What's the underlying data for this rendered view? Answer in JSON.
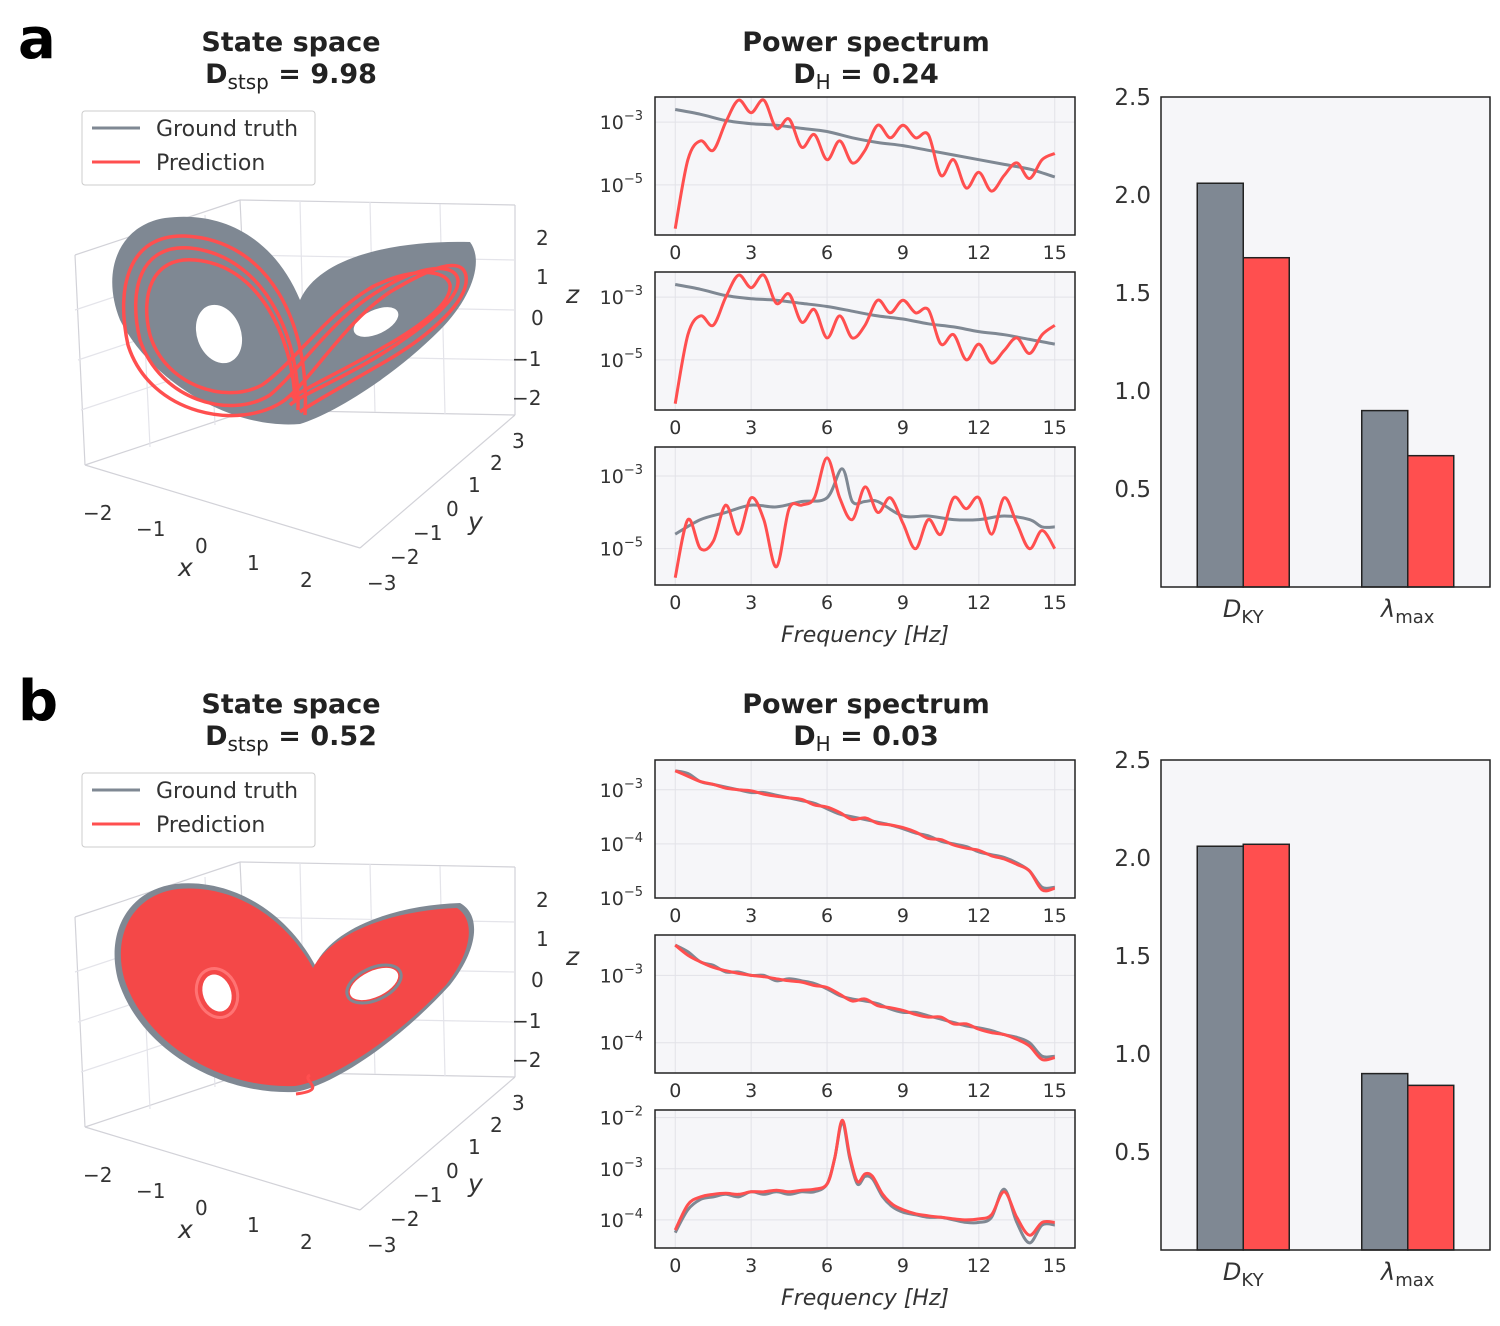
{
  "colors": {
    "ground_truth": "#7f8893",
    "prediction": "#ff4f4f",
    "panel_bg": "#f6f6f9",
    "grid": "#e2e2e8"
  },
  "panels": [
    {
      "label": "a",
      "state_space": {
        "title": "State space",
        "metric_symbol": "D",
        "metric_sub": "stsp",
        "metric_value": "9.98",
        "legend": [
          "Ground truth",
          "Prediction"
        ],
        "x_label": "x",
        "y_label": "y",
        "z_label": "z",
        "x_ticks": [
          "−2",
          "−1",
          "0",
          "1",
          "2"
        ],
        "y_ticks": [
          "3",
          "2",
          "1",
          "0",
          "−1",
          "−2",
          "−3"
        ],
        "z_ticks": [
          "2",
          "1",
          "0",
          "−1",
          "−2"
        ]
      },
      "power_spectrum": {
        "title": "Power spectrum",
        "metric_symbol": "D",
        "metric_sub": "H",
        "metric_value": "0.24",
        "x_label": "Frequency [Hz]",
        "x_ticks": [
          "0",
          "3",
          "6",
          "9",
          "12",
          "15"
        ]
      }
    },
    {
      "label": "b",
      "state_space": {
        "title": "State space",
        "metric_symbol": "D",
        "metric_sub": "stsp",
        "metric_value": "0.52",
        "legend": [
          "Ground truth",
          "Prediction"
        ],
        "x_label": "x",
        "y_label": "y",
        "z_label": "z",
        "x_ticks": [
          "−2",
          "−1",
          "0",
          "1",
          "2"
        ],
        "y_ticks": [
          "3",
          "2",
          "1",
          "0",
          "−1",
          "−2",
          "−3"
        ],
        "z_ticks": [
          "2",
          "1",
          "0",
          "−1",
          "−2"
        ]
      },
      "power_spectrum": {
        "title": "Power spectrum",
        "metric_symbol": "D",
        "metric_sub": "H",
        "metric_value": "0.03",
        "x_label": "Frequency [Hz]",
        "x_ticks": [
          "0",
          "3",
          "6",
          "9",
          "12",
          "15"
        ]
      }
    }
  ],
  "chart_data": [
    {
      "id": "a1",
      "type": "line",
      "panel": "a",
      "ylog": true,
      "ylim_exp": [
        -6.6,
        -2.2
      ],
      "xlim": [
        -0.8,
        15.8
      ],
      "yticks_exp": [
        -3,
        -5
      ],
      "ytick_labels": [
        "10",
        "10"
      ],
      "ytick_sups": [
        "−3",
        "−5"
      ],
      "series": [
        {
          "name": "Ground truth",
          "x": [
            0,
            1,
            2,
            3,
            4,
            5,
            6,
            7,
            8,
            9,
            10,
            11,
            12,
            13,
            14,
            15
          ],
          "log10_y": [
            -2.6,
            -2.75,
            -2.95,
            -3.05,
            -3.1,
            -3.2,
            -3.3,
            -3.5,
            -3.65,
            -3.75,
            -3.9,
            -4.05,
            -4.2,
            -4.35,
            -4.5,
            -4.75
          ]
        },
        {
          "name": "Prediction",
          "x": [
            0,
            0.5,
            1,
            1.5,
            2,
            2.5,
            3,
            3.5,
            4,
            4.5,
            5,
            5.5,
            6,
            6.5,
            7,
            7.5,
            8,
            8.5,
            9,
            9.5,
            10,
            10.5,
            11,
            11.5,
            12,
            12.5,
            13,
            13.5,
            14,
            14.5,
            15
          ],
          "log10_y": [
            -6.4,
            -4.2,
            -3.6,
            -3.9,
            -3.0,
            -2.3,
            -2.7,
            -2.3,
            -3.2,
            -2.9,
            -3.8,
            -3.4,
            -4.2,
            -3.6,
            -4.3,
            -3.9,
            -3.1,
            -3.5,
            -3.1,
            -3.5,
            -3.4,
            -4.7,
            -4.2,
            -5.1,
            -4.6,
            -5.2,
            -4.7,
            -4.3,
            -4.8,
            -4.2,
            -4.0
          ]
        }
      ]
    },
    {
      "id": "a2",
      "type": "line",
      "panel": "a",
      "ylog": true,
      "ylim_exp": [
        -6.6,
        -2.2
      ],
      "xlim": [
        -0.8,
        15.8
      ],
      "yticks_exp": [
        -3,
        -5
      ],
      "ytick_labels": [
        "10",
        "10"
      ],
      "ytick_sups": [
        "−3",
        "−5"
      ],
      "series": [
        {
          "name": "Ground truth",
          "x": [
            0,
            1,
            2,
            3,
            4,
            5,
            6,
            7,
            8,
            9,
            10,
            11,
            12,
            13,
            14,
            15
          ],
          "log10_y": [
            -2.6,
            -2.75,
            -2.95,
            -3.05,
            -3.1,
            -3.2,
            -3.3,
            -3.45,
            -3.6,
            -3.7,
            -3.85,
            -3.95,
            -4.1,
            -4.2,
            -4.35,
            -4.5
          ]
        },
        {
          "name": "Prediction",
          "x": [
            0,
            0.5,
            1,
            1.5,
            2,
            2.5,
            3,
            3.5,
            4,
            4.5,
            5,
            5.5,
            6,
            6.5,
            7,
            7.5,
            8,
            8.5,
            9,
            9.5,
            10,
            10.5,
            11,
            11.5,
            12,
            12.5,
            13,
            13.5,
            14,
            14.5,
            15
          ],
          "log10_y": [
            -6.4,
            -4.2,
            -3.6,
            -3.9,
            -3.0,
            -2.3,
            -2.7,
            -2.3,
            -3.2,
            -2.9,
            -3.8,
            -3.4,
            -4.3,
            -3.6,
            -4.3,
            -3.9,
            -3.1,
            -3.5,
            -3.1,
            -3.5,
            -3.4,
            -4.5,
            -4.2,
            -5.0,
            -4.5,
            -5.1,
            -4.7,
            -4.3,
            -4.8,
            -4.2,
            -3.9
          ]
        }
      ]
    },
    {
      "id": "a3",
      "type": "line",
      "panel": "a",
      "ylog": true,
      "ylim_exp": [
        -6.0,
        -2.2
      ],
      "xlim": [
        -0.8,
        15.8
      ],
      "yticks_exp": [
        -3,
        -5
      ],
      "ytick_labels": [
        "10",
        "10"
      ],
      "ytick_sups": [
        "−3",
        "−5"
      ],
      "series": [
        {
          "name": "Ground truth",
          "x": [
            0,
            1,
            2,
            3,
            4,
            5,
            6,
            6.6,
            7,
            7.5,
            8,
            9,
            10,
            11,
            12,
            13,
            14,
            14.5,
            15
          ],
          "log10_y": [
            -4.6,
            -4.2,
            -4.0,
            -3.8,
            -3.85,
            -3.7,
            -3.6,
            -2.8,
            -3.7,
            -3.7,
            -3.7,
            -4.1,
            -4.1,
            -4.2,
            -4.2,
            -4.1,
            -4.2,
            -4.4,
            -4.4
          ]
        },
        {
          "name": "Prediction",
          "x": [
            0,
            0.5,
            1,
            1.5,
            2,
            2.5,
            3,
            3.5,
            4,
            4.5,
            5,
            5.5,
            6,
            6.5,
            7,
            7.5,
            8,
            8.5,
            9,
            9.5,
            10,
            10.5,
            11,
            11.5,
            12,
            12.5,
            13,
            13.5,
            14,
            14.5,
            15
          ],
          "log10_y": [
            -5.8,
            -4.2,
            -5.0,
            -4.8,
            -3.8,
            -4.6,
            -3.6,
            -4.2,
            -5.5,
            -3.9,
            -3.8,
            -3.6,
            -2.5,
            -3.6,
            -4.2,
            -3.3,
            -4.0,
            -3.6,
            -4.3,
            -5.0,
            -4.2,
            -4.6,
            -3.6,
            -3.9,
            -3.6,
            -4.6,
            -3.6,
            -4.3,
            -5.0,
            -4.5,
            -5.0
          ]
        }
      ]
    },
    {
      "id": "b1",
      "type": "line",
      "panel": "b",
      "ylog": true,
      "ylim_exp": [
        -5.0,
        -2.45
      ],
      "xlim": [
        -0.8,
        15.8
      ],
      "yticks_exp": [
        -3,
        -4,
        -5
      ],
      "ytick_labels": [
        "10",
        "10",
        "10"
      ],
      "ytick_sups": [
        "−3",
        "−4",
        "−5"
      ],
      "series": [
        {
          "name": "Ground truth",
          "x": [
            0,
            0.5,
            1,
            1.5,
            2,
            2.5,
            3,
            3.5,
            4,
            4.5,
            5,
            5.5,
            6,
            6.5,
            7,
            7.5,
            8,
            8.5,
            9,
            9.5,
            10,
            10.5,
            11,
            11.5,
            12,
            12.5,
            13,
            13.5,
            14,
            14.5,
            15
          ],
          "log10_y": [
            -2.65,
            -2.7,
            -2.85,
            -2.9,
            -2.95,
            -3.0,
            -3.05,
            -3.05,
            -3.1,
            -3.15,
            -3.2,
            -3.25,
            -3.35,
            -3.45,
            -3.5,
            -3.55,
            -3.6,
            -3.65,
            -3.72,
            -3.8,
            -3.85,
            -3.95,
            -4.0,
            -4.05,
            -4.15,
            -4.2,
            -4.25,
            -4.35,
            -4.5,
            -4.8,
            -4.8
          ]
        },
        {
          "name": "Prediction",
          "x": [
            0,
            0.5,
            1,
            1.5,
            2,
            2.5,
            3,
            3.5,
            4,
            4.5,
            5,
            5.5,
            6,
            6.5,
            7,
            7.5,
            8,
            8.5,
            9,
            9.5,
            10,
            10.5,
            11,
            11.5,
            12,
            12.5,
            13,
            13.5,
            14,
            14.5,
            15
          ],
          "log10_y": [
            -2.65,
            -2.75,
            -2.85,
            -2.9,
            -2.97,
            -3.0,
            -3.02,
            -3.08,
            -3.12,
            -3.15,
            -3.18,
            -3.28,
            -3.32,
            -3.42,
            -3.55,
            -3.52,
            -3.62,
            -3.65,
            -3.7,
            -3.78,
            -3.9,
            -3.92,
            -4.02,
            -4.08,
            -4.12,
            -4.22,
            -4.28,
            -4.38,
            -4.5,
            -4.85,
            -4.82
          ]
        }
      ]
    },
    {
      "id": "b2",
      "type": "line",
      "panel": "b",
      "ylog": true,
      "ylim_exp": [
        -4.45,
        -2.4
      ],
      "xlim": [
        -0.8,
        15.8
      ],
      "yticks_exp": [
        -3,
        -4
      ],
      "ytick_labels": [
        "10",
        "10"
      ],
      "ytick_sups": [
        "−3",
        "−4"
      ],
      "series": [
        {
          "name": "Ground truth",
          "x": [
            0,
            0.5,
            1,
            1.5,
            2,
            2.5,
            3,
            3.5,
            4,
            4.5,
            5,
            5.5,
            6,
            6.5,
            7,
            7.5,
            8,
            8.5,
            9,
            9.5,
            10,
            10.5,
            11,
            11.5,
            12,
            12.5,
            13,
            13.5,
            14,
            14.5,
            15
          ],
          "log10_y": [
            -2.55,
            -2.65,
            -2.8,
            -2.85,
            -2.95,
            -2.95,
            -3.0,
            -3.0,
            -3.08,
            -3.05,
            -3.08,
            -3.12,
            -3.2,
            -3.3,
            -3.35,
            -3.38,
            -3.42,
            -3.5,
            -3.55,
            -3.55,
            -3.6,
            -3.65,
            -3.7,
            -3.75,
            -3.78,
            -3.82,
            -3.88,
            -3.92,
            -4.0,
            -4.2,
            -4.2
          ]
        },
        {
          "name": "Prediction",
          "x": [
            0,
            0.5,
            1,
            1.5,
            2,
            2.5,
            3,
            3.5,
            4,
            4.5,
            5,
            5.5,
            6,
            6.5,
            7,
            7.5,
            8,
            8.5,
            9,
            9.5,
            10,
            10.5,
            11,
            11.5,
            12,
            12.5,
            13,
            13.5,
            14,
            14.5,
            15
          ],
          "log10_y": [
            -2.55,
            -2.7,
            -2.8,
            -2.88,
            -2.93,
            -2.97,
            -3.0,
            -3.02,
            -3.05,
            -3.08,
            -3.1,
            -3.15,
            -3.18,
            -3.28,
            -3.38,
            -3.35,
            -3.45,
            -3.48,
            -3.52,
            -3.58,
            -3.62,
            -3.62,
            -3.72,
            -3.72,
            -3.8,
            -3.85,
            -3.88,
            -3.95,
            -4.05,
            -4.25,
            -4.22
          ]
        }
      ]
    },
    {
      "id": "b3",
      "type": "line",
      "panel": "b",
      "ylog": true,
      "ylim_exp": [
        -4.55,
        -1.85
      ],
      "xlim": [
        -0.8,
        15.8
      ],
      "yticks_exp": [
        -2,
        -3,
        -4
      ],
      "ytick_labels": [
        "10",
        "10",
        "10"
      ],
      "ytick_sups": [
        "−2",
        "−3",
        "−4"
      ],
      "series": [
        {
          "name": "Ground truth",
          "x": [
            0,
            0.5,
            1,
            1.5,
            2,
            2.5,
            3,
            3.5,
            4,
            4.5,
            5,
            5.5,
            6,
            6.3,
            6.6,
            6.9,
            7.2,
            7.5,
            7.8,
            8.2,
            8.6,
            9,
            9.5,
            10,
            10.5,
            11,
            11.5,
            12,
            12.5,
            13,
            13.5,
            14,
            14.5,
            15
          ],
          "log10_y": [
            -4.25,
            -3.8,
            -3.6,
            -3.55,
            -3.5,
            -3.55,
            -3.45,
            -3.5,
            -3.45,
            -3.5,
            -3.45,
            -3.45,
            -3.3,
            -2.8,
            -2.1,
            -2.8,
            -3.3,
            -3.15,
            -3.2,
            -3.55,
            -3.75,
            -3.85,
            -3.9,
            -3.95,
            -3.95,
            -4.0,
            -4.05,
            -4.05,
            -3.95,
            -3.4,
            -4.05,
            -4.45,
            -4.1,
            -4.1
          ]
        },
        {
          "name": "Prediction",
          "x": [
            0,
            0.5,
            1,
            1.5,
            2,
            2.5,
            3,
            3.5,
            4,
            4.5,
            5,
            5.5,
            6,
            6.3,
            6.6,
            6.9,
            7.2,
            7.5,
            7.8,
            8.2,
            8.6,
            9,
            9.5,
            10,
            10.5,
            11,
            11.5,
            12,
            12.5,
            13,
            13.5,
            14,
            14.5,
            15
          ],
          "log10_y": [
            -4.2,
            -3.7,
            -3.55,
            -3.5,
            -3.48,
            -3.5,
            -3.45,
            -3.45,
            -3.42,
            -3.45,
            -3.42,
            -3.4,
            -3.3,
            -2.8,
            -2.05,
            -2.75,
            -3.25,
            -3.1,
            -3.15,
            -3.5,
            -3.7,
            -3.8,
            -3.88,
            -3.92,
            -3.95,
            -3.98,
            -4.0,
            -3.98,
            -3.9,
            -3.45,
            -3.95,
            -4.3,
            -4.05,
            -4.05
          ]
        }
      ]
    },
    {
      "id": "a_bar",
      "type": "bar",
      "panel": "a",
      "ylim": [
        0,
        2.5
      ],
      "categories": [
        "D_KY",
        "λ_max"
      ],
      "cat_main": [
        "D",
        "λ"
      ],
      "cat_sub": [
        "KY",
        "max"
      ],
      "yticks": [
        0.5,
        1.0,
        1.5,
        2.0,
        2.5
      ],
      "ytick_labels": [
        "0.5",
        "1.0",
        "1.5",
        "2.0",
        "2.5"
      ],
      "series": [
        {
          "name": "Ground truth",
          "values": [
            2.06,
            0.9
          ]
        },
        {
          "name": "Prediction",
          "values": [
            1.68,
            0.67
          ]
        }
      ]
    },
    {
      "id": "b_bar",
      "type": "bar",
      "panel": "b",
      "ylim": [
        0,
        2.5
      ],
      "categories": [
        "D_KY",
        "λ_max"
      ],
      "cat_main": [
        "D",
        "λ"
      ],
      "cat_sub": [
        "KY",
        "max"
      ],
      "yticks": [
        0.5,
        1.0,
        1.5,
        2.0,
        2.5
      ],
      "ytick_labels": [
        "0.5",
        "1.0",
        "1.5",
        "2.0",
        "2.5"
      ],
      "series": [
        {
          "name": "Ground truth",
          "values": [
            2.06,
            0.9
          ]
        },
        {
          "name": "Prediction",
          "values": [
            2.07,
            0.84
          ]
        }
      ]
    }
  ]
}
